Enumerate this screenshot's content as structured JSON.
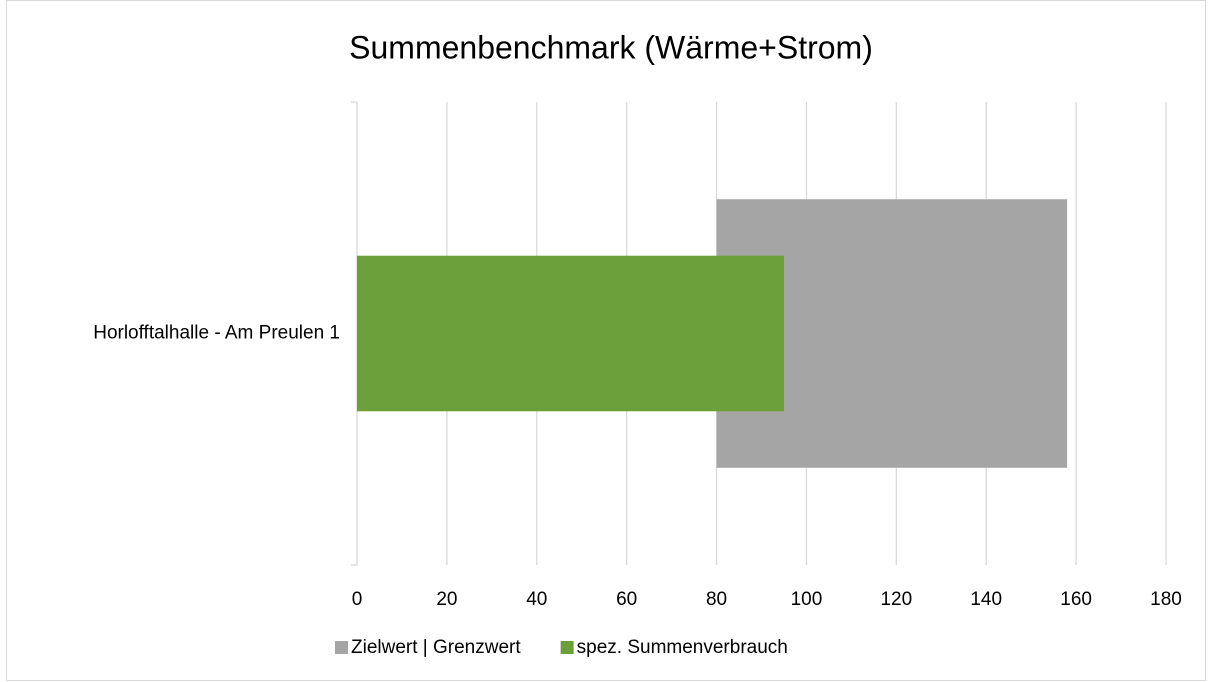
{
  "chart_data": {
    "type": "bar",
    "orientation": "horizontal",
    "title": "Summenbenchmark (Wärme+Strom)",
    "categories": [
      "Horlofftalhalle - Am Preulen 1"
    ],
    "series": [
      {
        "name": "Zielwert | Grenzwert",
        "color": "#a5a5a5",
        "low": [
          80
        ],
        "high": [
          158
        ]
      },
      {
        "name": "spez. Summenverbrauch",
        "color": "#6a9f3a",
        "values": [
          95
        ]
      }
    ],
    "xlim": [
      0,
      180
    ],
    "xticks": [
      0,
      20,
      40,
      60,
      80,
      100,
      120,
      140,
      160,
      180
    ],
    "grid": true,
    "legend": "bottom"
  }
}
